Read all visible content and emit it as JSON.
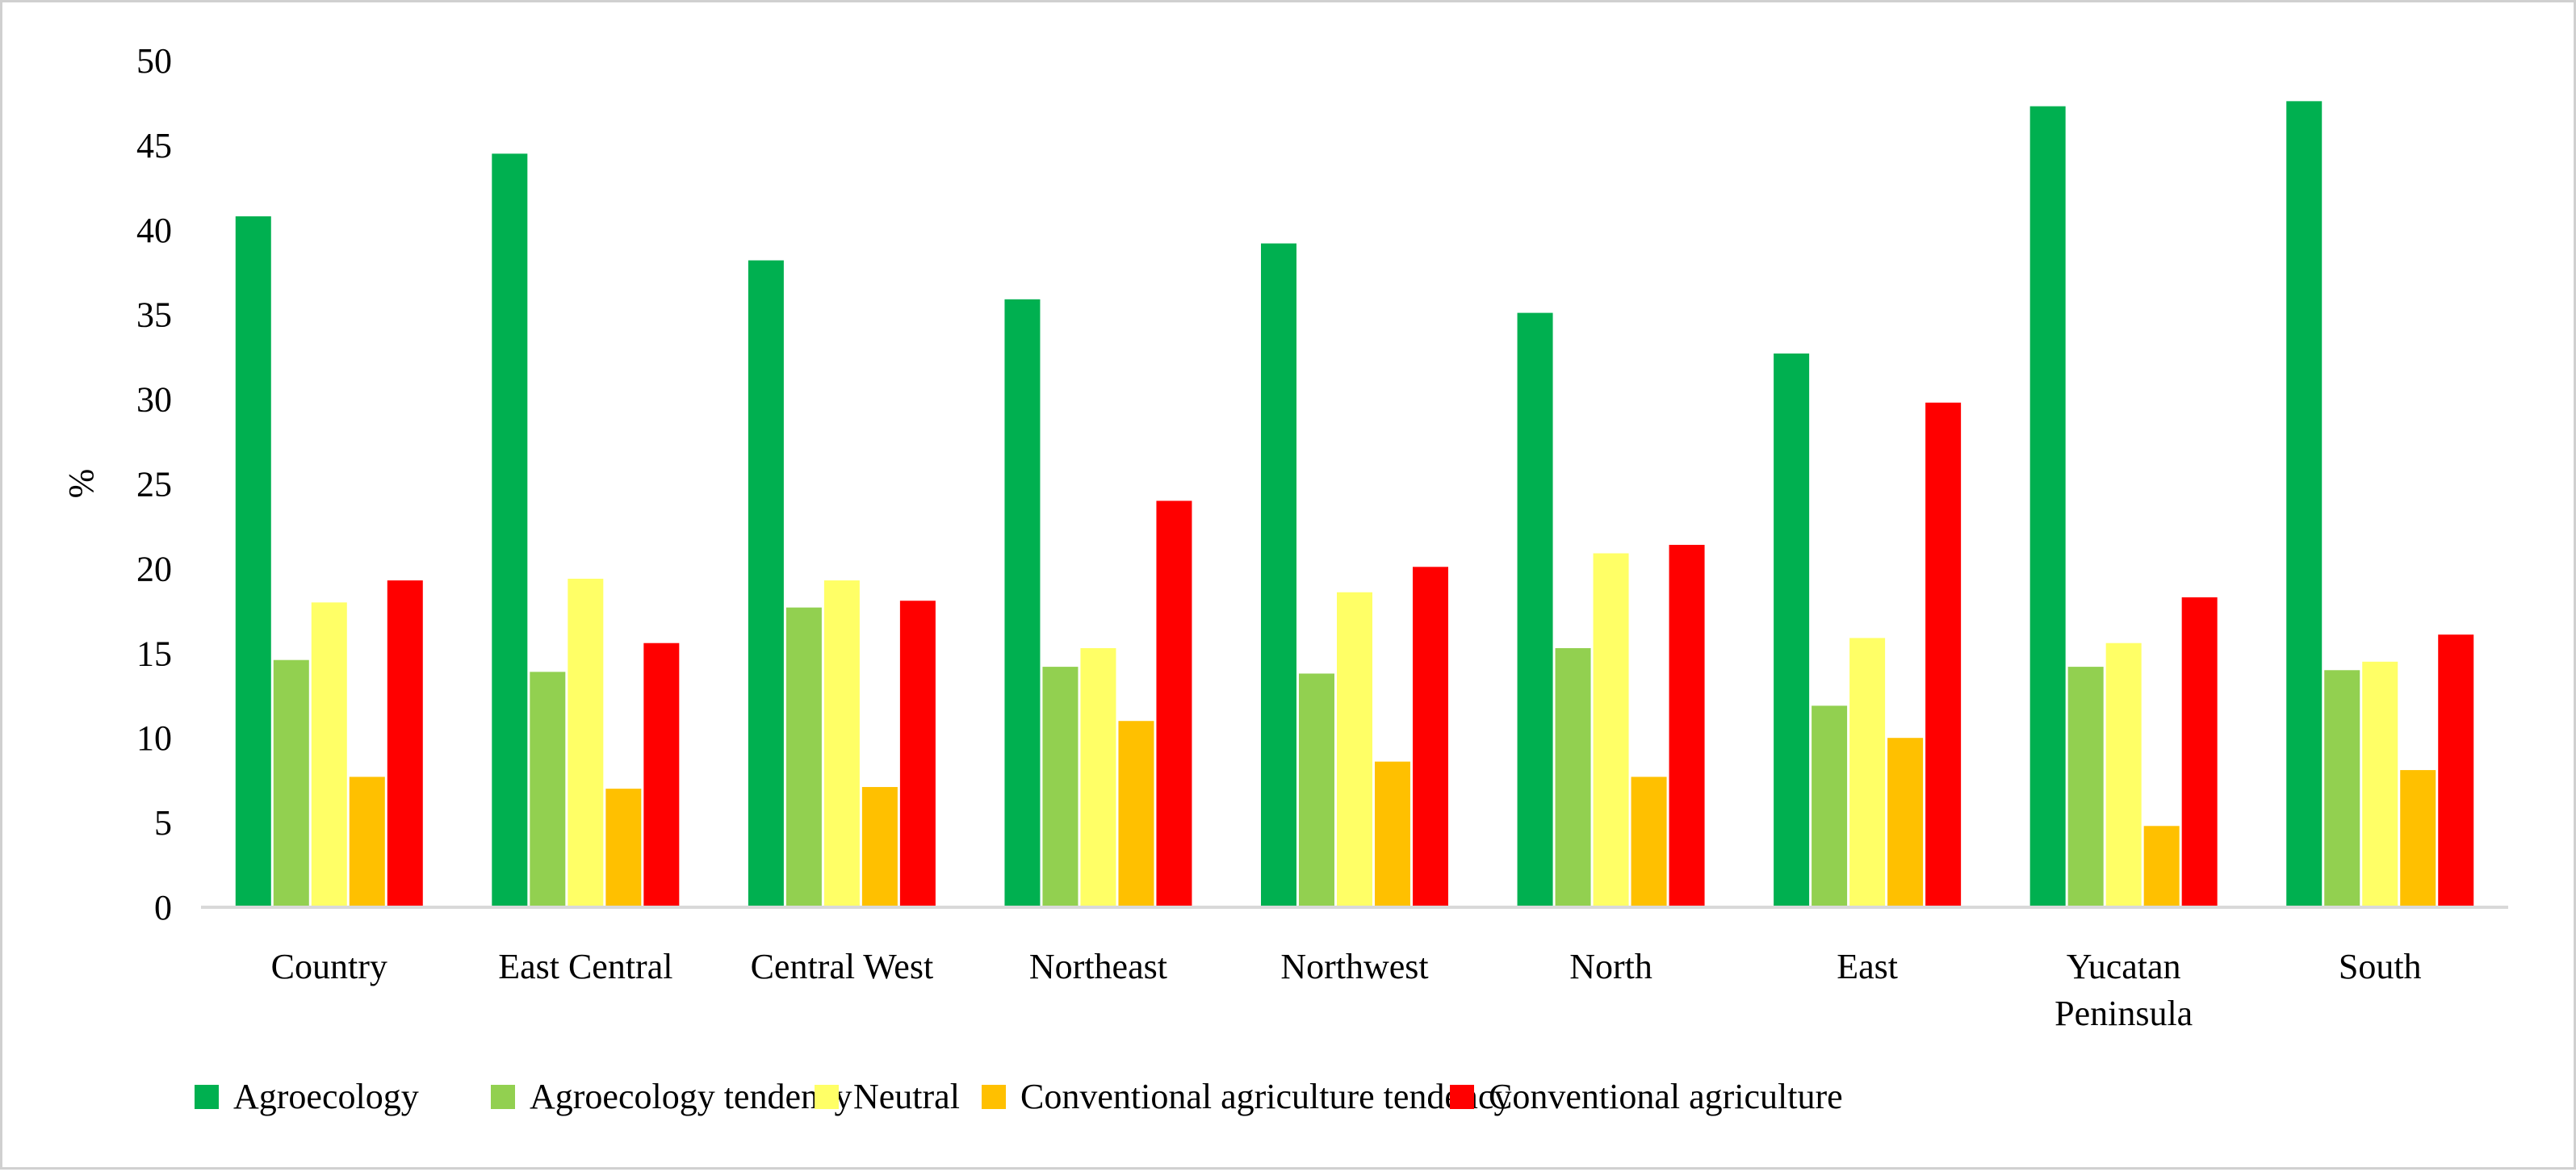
{
  "chart_data": {
    "type": "bar",
    "title": "",
    "xlabel": "",
    "ylabel": "%",
    "ylim": [
      0,
      50
    ],
    "yticks": [
      "0",
      "5",
      "10",
      "15",
      "20",
      "25",
      "30",
      "35",
      "40",
      "45",
      "50"
    ],
    "grid": false,
    "legend_position": "bottom",
    "categories": [
      [
        "Country"
      ],
      [
        "East Central"
      ],
      [
        "Central West"
      ],
      [
        "Northeast"
      ],
      [
        "Northwest"
      ],
      [
        "North"
      ],
      [
        "East"
      ],
      [
        "Yucatan",
        "Peninsula"
      ],
      [
        "South"
      ]
    ],
    "series": [
      {
        "name": "Agroecology",
        "color": "#00b050",
        "values": [
          40.8,
          44.5,
          38.2,
          35.9,
          39.2,
          35.1,
          32.7,
          47.3,
          47.6
        ]
      },
      {
        "name": "Agroecology tendency",
        "color": "#92d050",
        "values": [
          14.6,
          13.9,
          17.7,
          14.2,
          13.8,
          15.3,
          11.9,
          14.2,
          14.0
        ]
      },
      {
        "name": "Neutral",
        "color": "#ffff66",
        "values": [
          18.0,
          19.4,
          19.3,
          15.3,
          18.6,
          20.9,
          15.9,
          15.6,
          14.5
        ]
      },
      {
        "name": "Conventional agriculture tendency",
        "color": "#ffc000",
        "values": [
          7.7,
          7.0,
          7.1,
          11.0,
          8.6,
          7.7,
          10.0,
          4.8,
          8.1
        ]
      },
      {
        "name": "Conventional agriculture",
        "color": "#ff0000",
        "values": [
          19.3,
          15.6,
          18.1,
          24.0,
          20.1,
          21.4,
          29.8,
          18.3,
          16.1
        ]
      }
    ]
  }
}
